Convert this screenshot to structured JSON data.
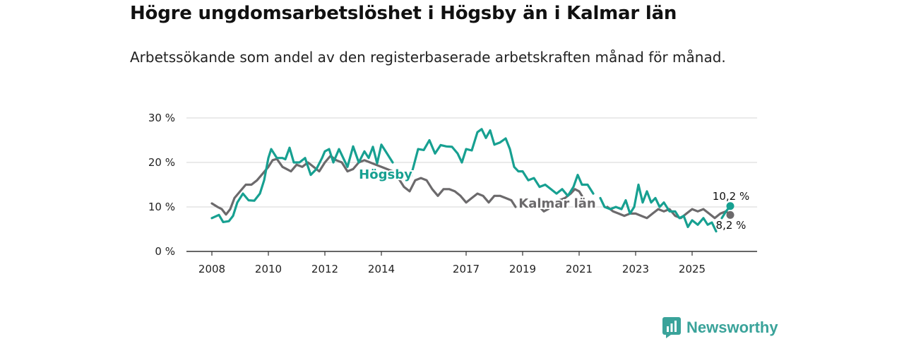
{
  "title": "Högre ungdomsarbetslöshet i Högsby än i Kalmar län",
  "subtitle": "Arbetssökande som andel av den registerbaserade arbetskraften månad för månad.",
  "brand": {
    "name": "Newsworthy",
    "color": "#3aa39a"
  },
  "chart_data": {
    "type": "line",
    "title": "Högre ungdomsarbetslöshet i Högsby än i Kalmar län",
    "xlabel": "",
    "ylabel": "",
    "xlim": [
      2008,
      2026.5
    ],
    "ylim": [
      0,
      30
    ],
    "x_ticks": [
      2008,
      2010,
      2012,
      2014,
      2017,
      2019,
      2021,
      2023,
      2025
    ],
    "x_tick_labels": [
      "2008",
      "2010",
      "2012",
      "2014",
      "2017",
      "2019",
      "2021",
      "2023",
      "2025"
    ],
    "y_ticks": [
      0,
      10,
      20,
      30
    ],
    "y_tick_labels": [
      "0 %",
      "10 %",
      "20 %",
      "30 %"
    ],
    "grid": true,
    "series": [
      {
        "name": "Högsby",
        "label": "Högsby",
        "color": "#17a091",
        "last_value_label": "10,2 %",
        "points": [
          [
            2008,
            7.5
          ],
          [
            2008.25,
            8.2
          ],
          [
            2008.4,
            6.6
          ],
          [
            2008.6,
            6.8
          ],
          [
            2008.75,
            8.0
          ],
          [
            2008.9,
            11.0
          ],
          [
            2009.1,
            13.0
          ],
          [
            2009.3,
            11.5
          ],
          [
            2009.5,
            11.4
          ],
          [
            2009.7,
            13.0
          ],
          [
            2009.85,
            16.0
          ],
          [
            2010,
            21.0
          ],
          [
            2010.1,
            23.0
          ],
          [
            2010.3,
            21.0
          ],
          [
            2010.5,
            21.0
          ],
          [
            2010.6,
            20.7
          ],
          [
            2010.75,
            23.3
          ],
          [
            2010.9,
            20.0
          ],
          [
            2011.1,
            20.0
          ],
          [
            2011.3,
            21.0
          ],
          [
            2011.5,
            17.2
          ],
          [
            2011.7,
            18.5
          ],
          [
            2011.9,
            21.0
          ],
          [
            2012.0,
            22.5
          ],
          [
            2012.15,
            23.0
          ],
          [
            2012.3,
            20.0
          ],
          [
            2012.5,
            23.0
          ],
          [
            2012.65,
            21.0
          ],
          [
            2012.8,
            19.0
          ],
          [
            2013.0,
            23.6
          ],
          [
            2013.2,
            20.0
          ],
          [
            2013.4,
            22.5
          ],
          [
            2013.55,
            21.0
          ],
          [
            2013.7,
            23.5
          ],
          [
            2013.85,
            19.8
          ],
          [
            2014.0,
            24.0
          ],
          [
            2014.2,
            22.0
          ],
          [
            2014.4,
            20.0
          ]
        ],
        "points_b": [
          [
            2014.85,
            16.0
          ],
          [
            2015.05,
            17.0
          ],
          [
            2015.3,
            23.0
          ],
          [
            2015.5,
            22.8
          ],
          [
            2015.7,
            25.0
          ],
          [
            2015.9,
            22.0
          ],
          [
            2016.1,
            23.9
          ],
          [
            2016.3,
            23.6
          ],
          [
            2016.5,
            23.5
          ],
          [
            2016.7,
            22.0
          ],
          [
            2016.85,
            20.0
          ],
          [
            2017.0,
            23.0
          ],
          [
            2017.2,
            22.7
          ],
          [
            2017.4,
            26.8
          ],
          [
            2017.55,
            27.5
          ],
          [
            2017.7,
            25.5
          ],
          [
            2017.85,
            27.2
          ],
          [
            2018.0,
            24.0
          ],
          [
            2018.2,
            24.5
          ],
          [
            2018.4,
            25.4
          ],
          [
            2018.55,
            23.0
          ],
          [
            2018.7,
            19.0
          ],
          [
            2018.85,
            18.0
          ],
          [
            2019.0,
            18.0
          ],
          [
            2019.2,
            16.0
          ],
          [
            2019.4,
            16.5
          ],
          [
            2019.6,
            14.5
          ],
          [
            2019.8,
            15.0
          ],
          [
            2020.0,
            14.0
          ],
          [
            2020.2,
            13.0
          ],
          [
            2020.4,
            14.0
          ],
          [
            2020.6,
            12.5
          ],
          [
            2020.8,
            14.5
          ],
          [
            2020.95,
            17.2
          ],
          [
            2021.1,
            15.0
          ],
          [
            2021.3,
            15.0
          ],
          [
            2021.5,
            13.0
          ]
        ],
        "points_c": [
          [
            2021.75,
            12.0
          ],
          [
            2021.9,
            10.0
          ],
          [
            2022.1,
            9.5
          ],
          [
            2022.3,
            10.0
          ],
          [
            2022.5,
            9.5
          ],
          [
            2022.65,
            11.5
          ],
          [
            2022.8,
            8.5
          ],
          [
            2022.95,
            10.0
          ],
          [
            2023.1,
            15.0
          ],
          [
            2023.25,
            11.0
          ],
          [
            2023.4,
            13.5
          ],
          [
            2023.55,
            11.0
          ],
          [
            2023.7,
            12.0
          ],
          [
            2023.85,
            10.0
          ],
          [
            2024.0,
            11.0
          ],
          [
            2024.2,
            9.0
          ],
          [
            2024.4,
            9.0
          ],
          [
            2024.55,
            7.5
          ],
          [
            2024.7,
            8.0
          ],
          [
            2024.85,
            5.5
          ],
          [
            2025.0,
            7.0
          ],
          [
            2025.2,
            6.0
          ],
          [
            2025.4,
            7.5
          ],
          [
            2025.55,
            6.0
          ],
          [
            2025.7,
            6.5
          ],
          [
            2025.85,
            4.5
          ]
        ],
        "points_d": [
          [
            2026.05,
            7.5
          ],
          [
            2026.2,
            9.0
          ],
          [
            2026.35,
            10.2
          ]
        ]
      },
      {
        "name": "Kalmar län",
        "label": "Kalmar län",
        "color": "#6c6a6c",
        "last_value_label": "8,2 %",
        "points": [
          [
            2008,
            10.8
          ],
          [
            2008.2,
            10.0
          ],
          [
            2008.35,
            9.5
          ],
          [
            2008.5,
            8.3
          ],
          [
            2008.65,
            9.5
          ],
          [
            2008.8,
            12.0
          ],
          [
            2009.0,
            13.5
          ],
          [
            2009.2,
            15.0
          ],
          [
            2009.4,
            15.0
          ],
          [
            2009.6,
            16.0
          ],
          [
            2009.8,
            17.5
          ],
          [
            2010.0,
            19.0
          ],
          [
            2010.15,
            20.5
          ],
          [
            2010.3,
            20.8
          ],
          [
            2010.5,
            19.0
          ],
          [
            2010.65,
            18.5
          ],
          [
            2010.8,
            18.0
          ],
          [
            2011.0,
            19.5
          ],
          [
            2011.2,
            19.0
          ],
          [
            2011.4,
            20.0
          ],
          [
            2011.6,
            19.0
          ],
          [
            2011.8,
            18.0
          ],
          [
            2012.0,
            20.0
          ],
          [
            2012.2,
            21.5
          ],
          [
            2012.4,
            20.5
          ],
          [
            2012.6,
            20.0
          ],
          [
            2012.8,
            18.0
          ],
          [
            2013.0,
            18.5
          ],
          [
            2013.2,
            20.0
          ],
          [
            2013.4,
            20.5
          ],
          [
            2013.6,
            20.0
          ],
          [
            2013.8,
            19.5
          ],
          [
            2014.0,
            19.0
          ],
          [
            2014.2,
            18.5
          ],
          [
            2014.4,
            18.0
          ],
          [
            2014.6,
            16.5
          ],
          [
            2014.8,
            14.5
          ],
          [
            2015.0,
            13.5
          ],
          [
            2015.2,
            16.0
          ],
          [
            2015.4,
            16.5
          ],
          [
            2015.6,
            16.0
          ],
          [
            2015.8,
            14.0
          ],
          [
            2016.0,
            12.5
          ],
          [
            2016.2,
            14.0
          ],
          [
            2016.4,
            14.0
          ],
          [
            2016.6,
            13.5
          ],
          [
            2016.8,
            12.5
          ],
          [
            2017.0,
            11.0
          ],
          [
            2017.2,
            12.0
          ],
          [
            2017.4,
            13.0
          ],
          [
            2017.6,
            12.5
          ],
          [
            2017.8,
            11.0
          ],
          [
            2018.0,
            12.5
          ],
          [
            2018.2,
            12.5
          ],
          [
            2018.4,
            12.0
          ],
          [
            2018.6,
            11.5
          ],
          [
            2018.75,
            10.0
          ]
        ],
        "points_b": [
          [
            2019.6,
            10.0
          ],
          [
            2019.75,
            9.0
          ],
          [
            2019.9,
            9.5
          ],
          [
            2020.1,
            10.5
          ],
          [
            2020.3,
            11.5
          ],
          [
            2020.5,
            12.0
          ],
          [
            2020.7,
            13.0
          ],
          [
            2020.85,
            14.0
          ],
          [
            2021.0,
            13.5
          ],
          [
            2021.1,
            12.5
          ]
        ],
        "points_c": [
          [
            2022.0,
            10.0
          ],
          [
            2022.2,
            9.0
          ],
          [
            2022.4,
            8.5
          ],
          [
            2022.6,
            8.0
          ],
          [
            2022.8,
            8.5
          ],
          [
            2023.0,
            8.5
          ],
          [
            2023.2,
            8.0
          ],
          [
            2023.4,
            7.5
          ],
          [
            2023.6,
            8.5
          ],
          [
            2023.8,
            9.5
          ],
          [
            2024.0,
            9.0
          ],
          [
            2024.2,
            9.5
          ],
          [
            2024.4,
            8.0
          ],
          [
            2024.6,
            7.5
          ],
          [
            2024.8,
            8.5
          ],
          [
            2025.0,
            9.5
          ],
          [
            2025.2,
            9.0
          ],
          [
            2025.4,
            9.5
          ],
          [
            2025.6,
            8.5
          ],
          [
            2025.8,
            7.5
          ],
          [
            2026.0,
            8.5
          ],
          [
            2026.2,
            9.0
          ],
          [
            2026.35,
            8.2
          ]
        ]
      }
    ]
  }
}
